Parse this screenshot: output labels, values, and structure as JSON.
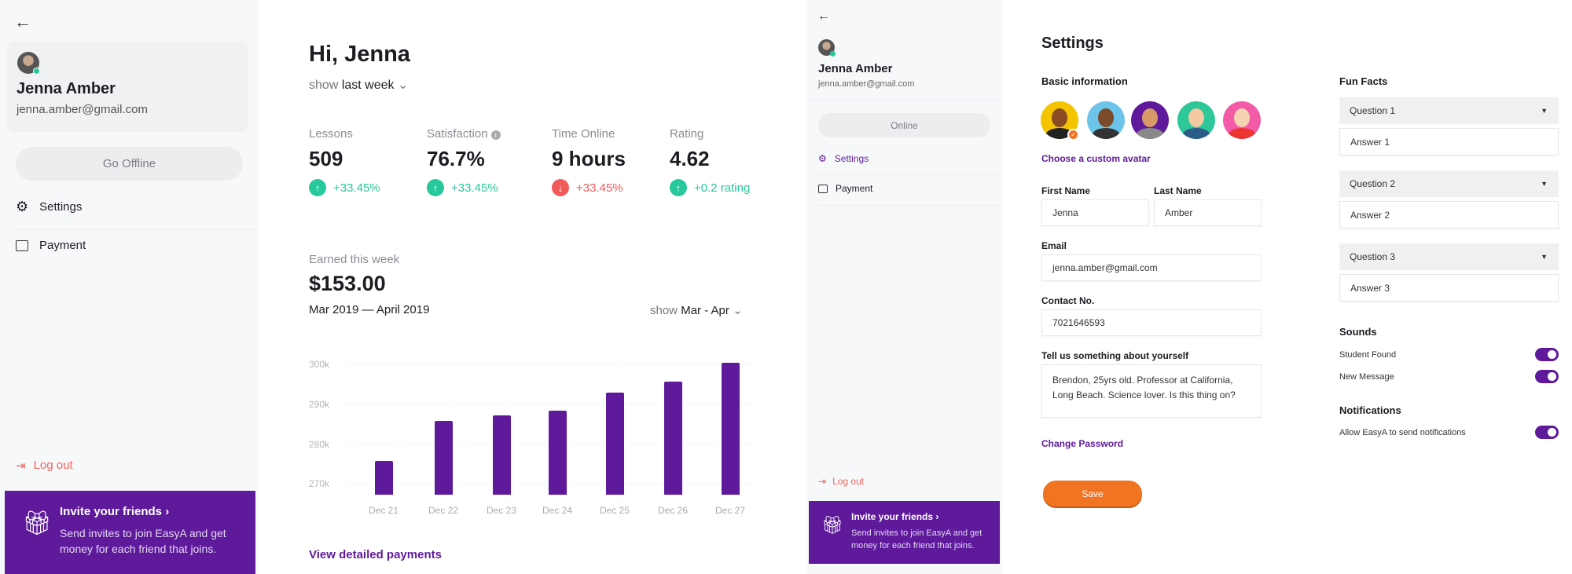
{
  "dashboard": {
    "sidebar": {
      "user_name": "Jenna Amber",
      "user_email": "jenna.amber@gmail.com",
      "status_button": "Go Offline",
      "items": [
        {
          "label": "Settings",
          "icon": "gear-icon"
        },
        {
          "label": "Payment",
          "icon": "wallet-icon"
        }
      ],
      "logout": "Log out",
      "invite_title": "Invite your friends",
      "invite_text": "Send invites to join EasyA and get money for each friend that joins."
    },
    "greeting": "Hi, Jenna",
    "period_prefix": "show",
    "period_value": "last week",
    "stats": [
      {
        "label": "Lessons",
        "value": "509",
        "change": "+33.45%",
        "trend": "up"
      },
      {
        "label": "Satisfaction",
        "value": "76.7%",
        "change": "+33.45%",
        "trend": "up"
      },
      {
        "label": "Time Online",
        "value": "9 hours",
        "change": "+33.45%",
        "trend": "down"
      },
      {
        "label": "Rating",
        "value": "4.62",
        "change": "+0.2 rating",
        "trend": "up"
      }
    ],
    "earned_label": "Earned this week",
    "earned_value": "$153.00",
    "date_range": "Mar 2019 — April 2019",
    "range_prefix": "show",
    "range_value": "Mar - Apr",
    "view_payments": "View detailed payments"
  },
  "chart_data": {
    "type": "bar",
    "categories": [
      "Dec 21",
      "Dec 22",
      "Dec 23",
      "Dec 24",
      "Dec 25",
      "Dec 26",
      "Dec 27"
    ],
    "values": [
      275.7,
      285.8,
      287.3,
      288.4,
      292.9,
      295.7,
      300.5
    ],
    "yticks": [
      "270k",
      "280k",
      "290k",
      "300k"
    ],
    "ytick_values": [
      270,
      280,
      290,
      300
    ],
    "ylim": [
      267.3,
      301
    ],
    "grid": true,
    "color": "#5e1a9b"
  },
  "settings": {
    "sidebar": {
      "user_name": "Jenna Amber",
      "user_email": "jenna.amber@gmail.com",
      "status_button": "Online",
      "items": [
        {
          "label": "Settings",
          "active": true
        },
        {
          "label": "Payment"
        }
      ],
      "logout": "Log out",
      "invite_title": "Invite your friends",
      "invite_text": "Send invites to join EasyA and get money for each friend that joins."
    },
    "title": "Settings",
    "basic_info": "Basic information",
    "choose_avatar": "Choose a custom avatar",
    "first_name_label": "First Name",
    "first_name": "Jenna",
    "last_name_label": "Last Name",
    "last_name": "Amber",
    "email_label": "Email",
    "email": "jenna.amber@gmail.com",
    "contact_label": "Contact No.",
    "contact": "7021646593",
    "about_label": "Tell us something about yourself",
    "about": "Brendon, 25yrs old. Professor at California, Long Beach. Science lover. Is this thing on?",
    "change_password": "Change Password",
    "save": "Save",
    "fun_facts": "Fun Facts",
    "questions": [
      {
        "q": "Question 1",
        "a": "Answer 1"
      },
      {
        "q": "Question 2",
        "a": "Answer 2"
      },
      {
        "q": "Question 3",
        "a": "Answer 3"
      }
    ],
    "sounds": "Sounds",
    "student_found": "Student Found",
    "new_message": "New Message",
    "notifications": "Notifications",
    "allow_notifications": "Allow EasyA to send notifications",
    "toggles": {
      "student_found": true,
      "new_message": true,
      "allow_notifications": true
    },
    "avatar_colors": [
      "#f5c400",
      "#6cc4ea",
      "#5e1a9b",
      "#2ec79a",
      "#f35ba8"
    ]
  },
  "colors": {
    "accent": "#5e1a9b",
    "up": "#27c99a",
    "down": "#f25a5a",
    "save": "#f07422",
    "logout": "#f0645a"
  }
}
